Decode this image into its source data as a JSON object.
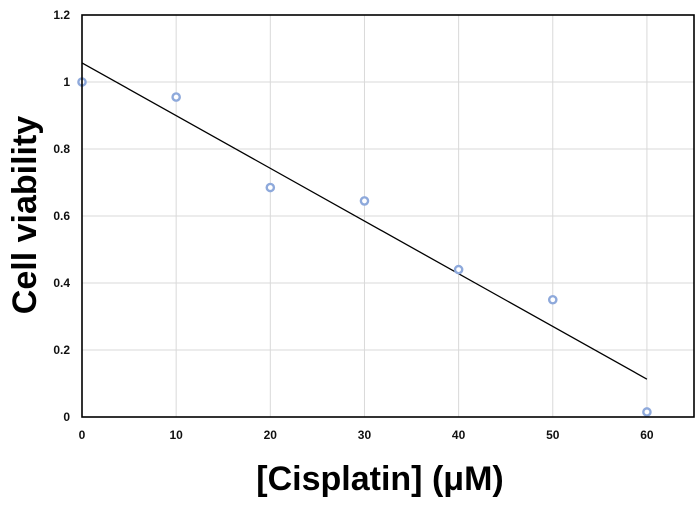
{
  "colors": {
    "marker": "#8ea9db",
    "trendline": "#000000",
    "grid": "#d9d9d9",
    "frame": "#000000"
  },
  "chart_data": {
    "type": "scatter",
    "title": "",
    "xlabel": "[Cisplatin] (μM)",
    "ylabel": "Cell viability",
    "xlim": [
      0,
      65
    ],
    "ylim": [
      0,
      1.2
    ],
    "grid": true,
    "legend": "none",
    "x_ticks": [
      "0",
      "10",
      "20",
      "30",
      "40",
      "50",
      "60"
    ],
    "y_ticks": [
      "0",
      "0.2",
      "0.4",
      "0.6",
      "0.8",
      "1",
      "1.2"
    ],
    "series": [
      {
        "x": [
          0,
          10,
          20,
          30,
          40,
          50,
          60
        ],
        "y": [
          1.0,
          0.955,
          0.685,
          0.645,
          0.44,
          0.35,
          0.015
        ],
        "marker": "hollow circle"
      }
    ],
    "trendline": {
      "type": "linear",
      "x_range": [
        0,
        60
      ],
      "y_start": 1.057,
      "y_end": 0.113
    }
  }
}
